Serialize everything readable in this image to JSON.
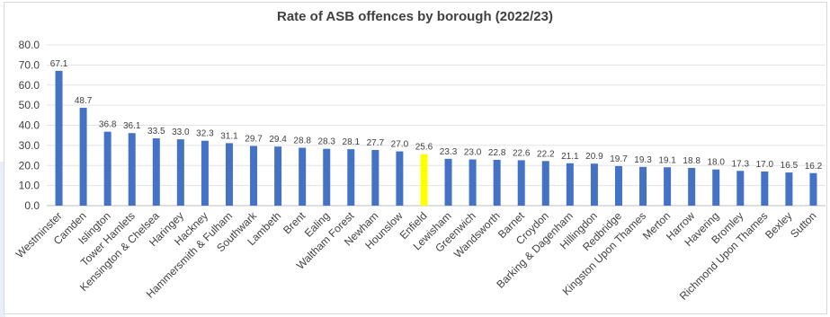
{
  "chart_data": {
    "type": "bar",
    "title": "Rate of ASB offences by borough (2022/23)",
    "xlabel": "",
    "ylabel": "",
    "ylim": [
      0,
      80
    ],
    "yticks": [
      "0.0",
      "10.0",
      "20.0",
      "30.0",
      "40.0",
      "50.0",
      "60.0",
      "70.0",
      "80.0"
    ],
    "grid": true,
    "legend": "none",
    "colors": {
      "default": "#4472c4",
      "highlight": "#ffff00"
    },
    "highlight_category": "Enfield",
    "categories": [
      "Westminster",
      "Camden",
      "Islington",
      "Tower Hamlets",
      "Kensington & Chelsea",
      "Haringey",
      "Hackney",
      "Hammersmith & Fulham",
      "Southwark",
      "Lambeth",
      "Brent",
      "Ealing",
      "Waltham Forest",
      "Newham",
      "Hounslow",
      "Enfield",
      "Lewisham",
      "Greenwich",
      "Wandsworth",
      "Barnet",
      "Croydon",
      "Barking & Dagenham",
      "Hillingdon",
      "Redbridge",
      "Kingston Upon Thames",
      "Merton",
      "Harrow",
      "Havering",
      "Bromley",
      "Richmond Upon Thames",
      "Bexley",
      "Sutton"
    ],
    "values": [
      67.1,
      48.7,
      36.8,
      36.1,
      33.5,
      33.0,
      32.3,
      31.1,
      29.7,
      29.4,
      28.8,
      28.3,
      28.1,
      27.7,
      27.0,
      25.6,
      23.3,
      23.0,
      22.8,
      22.6,
      22.2,
      21.1,
      20.9,
      19.7,
      19.3,
      19.1,
      18.8,
      18.0,
      17.3,
      17.0,
      16.5,
      16.2
    ],
    "value_labels": [
      "67.1",
      "48.7",
      "36.8",
      "36.1",
      "33.5",
      "33.0",
      "32.3",
      "31.1",
      "29.7",
      "29.4",
      "28.8",
      "28.3",
      "28.1",
      "27.7",
      "27.0",
      "25.6",
      "23.3",
      "23.0",
      "22.8",
      "22.6",
      "22.2",
      "21.1",
      "20.9",
      "19.7",
      "19.3",
      "19.1",
      "18.8",
      "18.0",
      "17.3",
      "17.0",
      "16.5",
      "16.2"
    ]
  }
}
